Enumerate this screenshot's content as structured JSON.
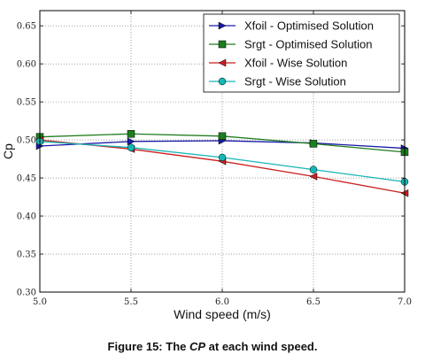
{
  "chart_data": {
    "type": "line",
    "xlabel": "Wind speed (m/s)",
    "ylabel": "Cp",
    "xlim": [
      5.0,
      7.0
    ],
    "ylim": [
      0.3,
      0.67
    ],
    "xticks": [
      "5.0",
      "5.5",
      "6.0",
      "6.5",
      "7.0"
    ],
    "yticks": [
      "0.30",
      "0.35",
      "0.40",
      "0.45",
      "0.50",
      "0.55",
      "0.60",
      "0.65"
    ],
    "grid": true,
    "legend_position": "top-right",
    "x": [
      5.0,
      5.5,
      6.0,
      6.5,
      7.0
    ],
    "series": [
      {
        "name": "Xfoil - Optimised Solution",
        "values": [
          0.492,
          0.498,
          0.499,
          0.496,
          0.489
        ],
        "color": "#1a1aa8",
        "marker": "triangle-right"
      },
      {
        "name": "Srgt - Optimised Solution",
        "values": [
          0.504,
          0.508,
          0.505,
          0.495,
          0.484
        ],
        "color": "#1e7d1e",
        "marker": "square"
      },
      {
        "name": "Xfoil - Wise Solution",
        "values": [
          0.5,
          0.488,
          0.472,
          0.452,
          0.43
        ],
        "color": "#cc1f1f",
        "marker": "triangle-left"
      },
      {
        "name": "Srgt - Wise Solution",
        "values": [
          0.498,
          0.49,
          0.477,
          0.461,
          0.445
        ],
        "color": "#17b5b5",
        "marker": "circle"
      }
    ]
  },
  "caption": {
    "prefix": "Figure 15: The ",
    "emphasis": "CP",
    "suffix": " at each wind speed."
  }
}
